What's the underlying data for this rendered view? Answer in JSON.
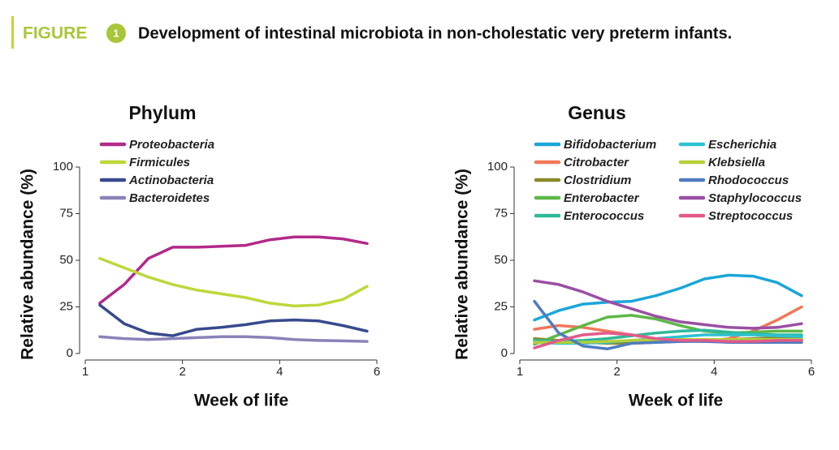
{
  "figure": {
    "label": "FIGURE",
    "number": "1",
    "title": "Development of intestinal microbiota in non-cholestatic very preterm infants."
  },
  "chart_data": [
    {
      "type": "line",
      "title": "Phylum",
      "x_label": "Week of life",
      "y_label": "Relative abundance (%)",
      "x": [
        1.15,
        1.4,
        1.65,
        1.9,
        2.3,
        2.8,
        3.3,
        3.8,
        4.3,
        4.8,
        5.3,
        5.8
      ],
      "xlim": [
        1,
        6
      ],
      "xticks": [
        1,
        2,
        4,
        6
      ],
      "ylim": [
        0,
        100
      ],
      "yticks": [
        0,
        25,
        50,
        75,
        100
      ],
      "series": [
        {
          "name": "Proteobacteria",
          "color": "#b22a8a",
          "values": [
            27,
            37,
            51,
            57,
            57,
            57.5,
            58,
            61,
            62.5,
            62.5,
            61.5,
            59
          ]
        },
        {
          "name": "Firmicules",
          "color": "#bed73b",
          "values": [
            51,
            46,
            41,
            37,
            34,
            32,
            30,
            27,
            25.5,
            26,
            29,
            36
          ]
        },
        {
          "name": "Actinobacteria",
          "color": "#374a8c",
          "values": [
            26,
            16,
            11,
            9.5,
            13,
            14,
            15.5,
            17.5,
            18,
            17.5,
            15,
            12
          ]
        },
        {
          "name": "Bacteroidetes",
          "color": "#8a83b8",
          "values": [
            9,
            8,
            7.5,
            8,
            8.5,
            9,
            9,
            8.5,
            7.5,
            7,
            6.8,
            6.5
          ]
        }
      ]
    },
    {
      "type": "line",
      "title": "Genus",
      "x_label": "Week of life",
      "y_label": "Relative abundance (%)",
      "x": [
        1.15,
        1.4,
        1.65,
        1.9,
        2.3,
        2.8,
        3.3,
        3.8,
        4.3,
        4.8,
        5.3,
        5.8
      ],
      "xlim": [
        1,
        6
      ],
      "xticks": [
        1,
        2,
        4,
        6
      ],
      "ylim": [
        0,
        100
      ],
      "yticks": [
        0,
        25,
        50,
        75,
        100
      ],
      "series": [
        {
          "name": "Bifidobacterium",
          "color": "#1ba6d9",
          "values": [
            18,
            23,
            26.5,
            27.5,
            28,
            31,
            35,
            40,
            42,
            41.5,
            38,
            31
          ]
        },
        {
          "name": "Citrobacter",
          "color": "#f0785a",
          "values": [
            13,
            15,
            14,
            12,
            10,
            8,
            7,
            6.5,
            8,
            12,
            18,
            25
          ]
        },
        {
          "name": "Clostridium",
          "color": "#8a8a2a",
          "values": [
            8,
            7,
            6,
            5.5,
            5.5,
            6,
            6.5,
            7,
            7.5,
            8,
            8.5,
            8.5
          ]
        },
        {
          "name": "Enterobacter",
          "color": "#5db848",
          "values": [
            5,
            10,
            15,
            19.5,
            20.5,
            18.5,
            15,
            12,
            11,
            11.5,
            12,
            12
          ]
        },
        {
          "name": "Enterococcus",
          "color": "#2fb99a",
          "values": [
            7,
            6.5,
            7,
            8,
            9.5,
            11,
            12,
            12.5,
            11.5,
            10.5,
            10,
            10
          ]
        },
        {
          "name": "Escherichia",
          "color": "#2ec1d0",
          "values": [
            6,
            5.5,
            5.5,
            6,
            7,
            8,
            9,
            10,
            10,
            10,
            9.5,
            9
          ]
        },
        {
          "name": "Klebsiella",
          "color": "#b5cf3a",
          "values": [
            6,
            6,
            6,
            6.5,
            7,
            7.5,
            7.5,
            7.5,
            7.5,
            7.5,
            7.5,
            7.5
          ]
        },
        {
          "name": "Rhodococcus",
          "color": "#4f7cc0",
          "values": [
            28,
            11,
            4,
            2.5,
            5.5,
            6,
            6.5,
            6.5,
            6,
            6,
            6,
            6
          ]
        },
        {
          "name": "Staphylococcus",
          "color": "#9a4fa3",
          "values": [
            39,
            37,
            33,
            28,
            24,
            20,
            17,
            15.5,
            14,
            13.5,
            14,
            16
          ]
        },
        {
          "name": "Streptococcus",
          "color": "#e25a8a",
          "values": [
            3,
            7,
            10,
            11,
            10,
            8,
            7,
            7,
            6.5,
            6.5,
            7,
            7
          ]
        }
      ]
    }
  ]
}
